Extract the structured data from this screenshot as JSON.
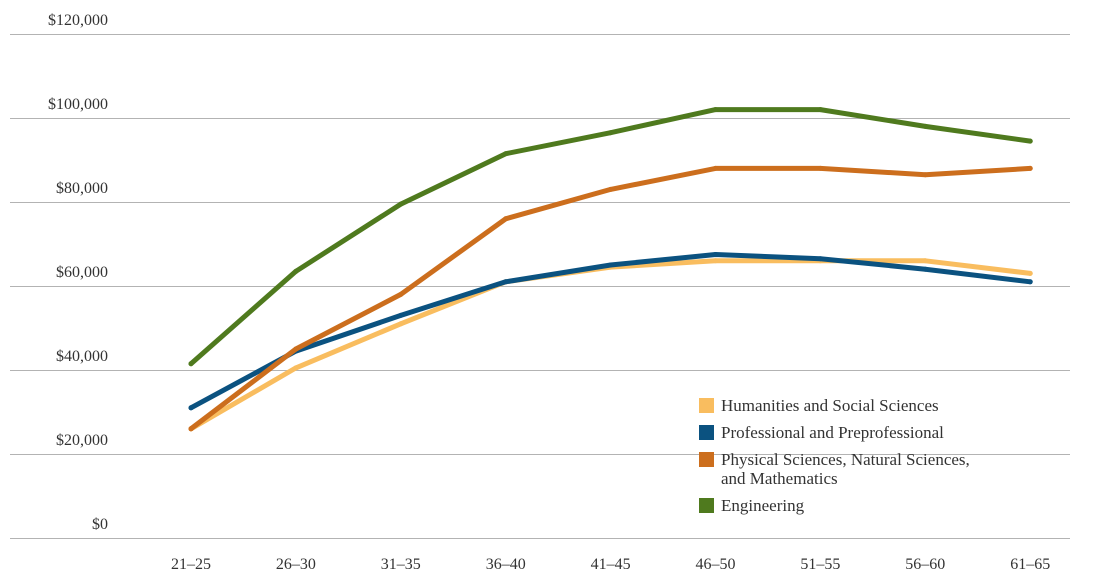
{
  "chart_data": {
    "type": "line",
    "title": "",
    "xlabel": "",
    "ylabel": "",
    "categories": [
      "21–25",
      "26–30",
      "31–35",
      "36–40",
      "41–45",
      "46–50",
      "51–55",
      "56–60",
      "61–65"
    ],
    "ylim": [
      0,
      120000
    ],
    "y_ticks": [
      0,
      20000,
      40000,
      60000,
      80000,
      100000,
      120000
    ],
    "y_tick_labels": [
      "$0",
      "$20,000",
      "$40,000",
      "$60,000",
      "$80,000",
      "$100,000",
      "$120,000"
    ],
    "grid": "horizontal",
    "legend_position": "lower-right",
    "series": [
      {
        "name": "Humanities and Social Sciences",
        "color": "#F9BD5F",
        "values": [
          26000,
          40500,
          51000,
          61000,
          64500,
          66000,
          66000,
          66000,
          63000
        ]
      },
      {
        "name": "Professional and Preprofessional",
        "color": "#0B5280",
        "values": [
          31000,
          44500,
          53000,
          61000,
          65000,
          67500,
          66500,
          64000,
          61000
        ]
      },
      {
        "name": "Physical Sciences, Natural Sciences, and Mathematics",
        "name_lines": [
          "Physical Sciences, Natural Sciences,",
          "and Mathematics"
        ],
        "color": "#CC6E1D",
        "values": [
          26000,
          45000,
          58000,
          76000,
          83000,
          88000,
          88000,
          86500,
          88000
        ]
      },
      {
        "name": "Engineering",
        "color": "#4F7A1E",
        "values": [
          41500,
          63500,
          79500,
          91500,
          96500,
          102000,
          102000,
          98000,
          94500
        ]
      }
    ]
  }
}
